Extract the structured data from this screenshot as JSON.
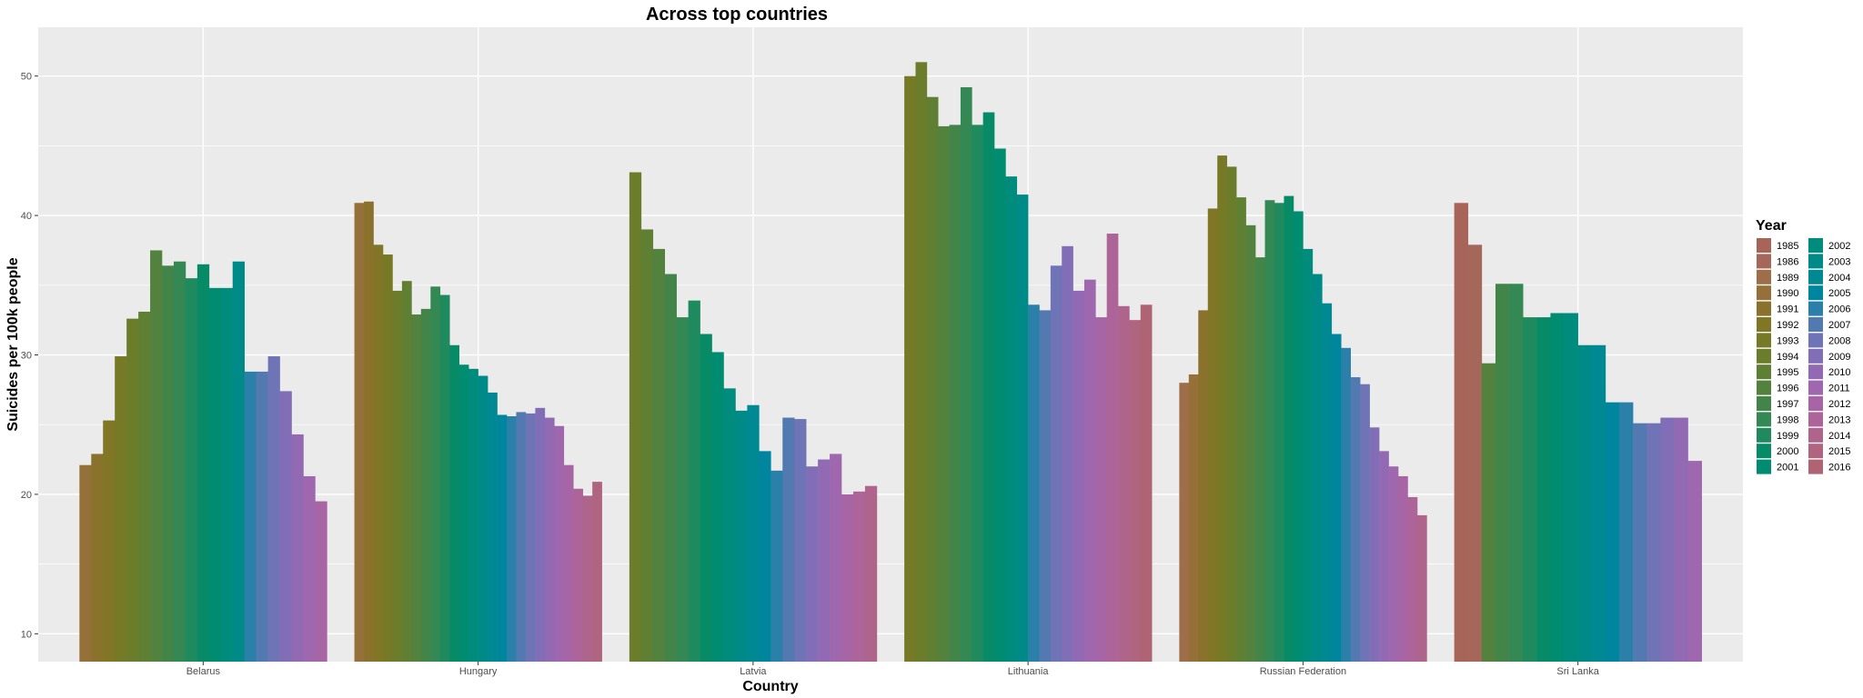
{
  "chart_data": {
    "type": "bar",
    "title": "Across top countries",
    "xlabel": "Country",
    "ylabel": "Suicides per 100k people",
    "legend_title": "Year",
    "legend_position": "right",
    "grid": true,
    "ylim": [
      8,
      53.5
    ],
    "yticks": [
      10,
      20,
      30,
      40,
      50
    ],
    "categories": [
      "Belarus",
      "Hungary",
      "Latvia",
      "Lithuania",
      "Russian Federation",
      "Sri Lanka"
    ],
    "series": [
      {
        "name": "1985",
        "color": "#A7655A",
        "values": [
          null,
          null,
          null,
          null,
          null,
          40.9
        ]
      },
      {
        "name": "1986",
        "color": "#A4675A",
        "values": [
          null,
          null,
          null,
          null,
          null,
          37.9
        ]
      },
      {
        "name": "1989",
        "color": "#9E6E48",
        "values": [
          null,
          null,
          null,
          null,
          28.0,
          null
        ]
      },
      {
        "name": "1990",
        "color": "#957038",
        "values": [
          22.1,
          40.9,
          null,
          null,
          28.6,
          null
        ]
      },
      {
        "name": "1991",
        "color": "#8A722C",
        "values": [
          22.9,
          41.0,
          null,
          null,
          33.2,
          null
        ]
      },
      {
        "name": "1992",
        "color": "#807625",
        "values": [
          25.3,
          37.9,
          null,
          null,
          40.5,
          null
        ]
      },
      {
        "name": "1993",
        "color": "#767925",
        "values": [
          29.9,
          37.2,
          null,
          50.0,
          44.3,
          null
        ]
      },
      {
        "name": "1994",
        "color": "#6B7C2A",
        "values": [
          32.6,
          34.6,
          43.1,
          51.0,
          43.5,
          null
        ]
      },
      {
        "name": "1995",
        "color": "#5F7F33",
        "values": [
          33.1,
          35.3,
          39.0,
          48.5,
          41.3,
          null
        ]
      },
      {
        "name": "1996",
        "color": "#52823D",
        "values": [
          37.5,
          32.9,
          37.6,
          46.4,
          39.3,
          29.4
        ]
      },
      {
        "name": "1997",
        "color": "#438548",
        "values": [
          36.4,
          33.3,
          35.8,
          46.5,
          37.0,
          35.1
        ]
      },
      {
        "name": "1998",
        "color": "#338853",
        "values": [
          36.7,
          34.9,
          32.7,
          49.2,
          41.1,
          35.1
        ]
      },
      {
        "name": "1999",
        "color": "#1F8A5D",
        "values": [
          35.5,
          34.3,
          33.9,
          46.5,
          40.9,
          32.7
        ]
      },
      {
        "name": "2000",
        "color": "#078B67",
        "values": [
          36.5,
          30.7,
          31.5,
          47.4,
          41.4,
          32.7
        ]
      },
      {
        "name": "2001",
        "color": "#008C71",
        "values": [
          34.8,
          29.3,
          30.2,
          44.8,
          40.3,
          33.0
        ]
      },
      {
        "name": "2002",
        "color": "#008C7C",
        "values": [
          34.8,
          29.0,
          27.6,
          42.8,
          37.6,
          33.0
        ]
      },
      {
        "name": "2003",
        "color": "#008A87",
        "values": [
          36.7,
          28.5,
          26.0,
          41.5,
          35.8,
          30.7
        ]
      },
      {
        "name": "2004",
        "color": "#008893",
        "values": [
          null,
          27.3,
          26.4,
          null,
          33.7,
          30.7
        ]
      },
      {
        "name": "2005",
        "color": "#00859F",
        "values": [
          null,
          25.7,
          23.1,
          null,
          31.5,
          26.6
        ]
      },
      {
        "name": "2006",
        "color": "#2B80A9",
        "values": [
          28.8,
          25.6,
          21.7,
          33.6,
          30.5,
          26.6
        ]
      },
      {
        "name": "2007",
        "color": "#527AB1",
        "values": [
          28.8,
          25.9,
          25.5,
          33.2,
          28.4,
          25.1
        ]
      },
      {
        "name": "2008",
        "color": "#6E74B6",
        "values": [
          29.9,
          25.8,
          25.4,
          36.4,
          27.9,
          25.1
        ]
      },
      {
        "name": "2009",
        "color": "#826EB7",
        "values": [
          27.4,
          26.2,
          22.0,
          37.8,
          24.8,
          25.5
        ]
      },
      {
        "name": "2010",
        "color": "#926AB4",
        "values": [
          24.3,
          25.5,
          22.5,
          34.6,
          23.1,
          25.5
        ]
      },
      {
        "name": "2011",
        "color": "#9E67AE",
        "values": [
          21.3,
          24.9,
          22.9,
          35.4,
          22.0,
          22.4
        ]
      },
      {
        "name": "2012",
        "color": "#A765A5",
        "values": [
          19.5,
          22.1,
          20.0,
          32.7,
          21.3,
          null
        ]
      },
      {
        "name": "2013",
        "color": "#AC6499",
        "values": [
          null,
          20.4,
          20.2,
          38.7,
          19.8,
          null
        ]
      },
      {
        "name": "2014",
        "color": "#AF648C",
        "values": [
          null,
          19.9,
          20.6,
          33.5,
          18.5,
          null
        ]
      },
      {
        "name": "2015",
        "color": "#AF6480",
        "values": [
          null,
          20.9,
          null,
          32.5,
          null,
          null
        ]
      },
      {
        "name": "2016",
        "color": "#AE6473",
        "values": [
          null,
          null,
          null,
          33.6,
          null,
          null
        ]
      }
    ]
  }
}
